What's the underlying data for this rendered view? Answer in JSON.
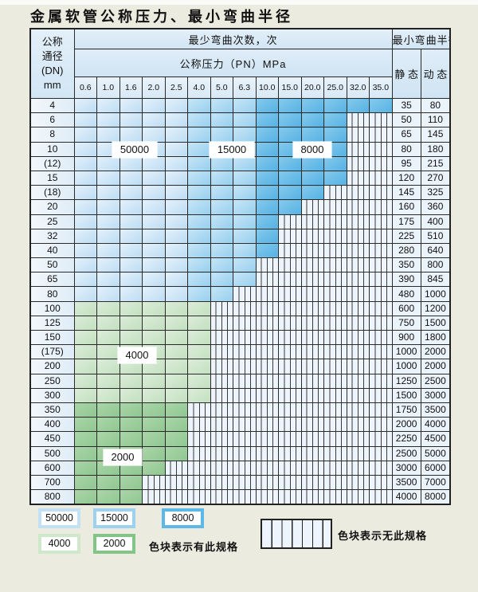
{
  "title": "金属软管公称压力、最小弯曲半径",
  "table": {
    "header": {
      "dn_label_lines": [
        "公称",
        "通径",
        "(DN)",
        "mm"
      ],
      "bend_cycles_label": "最少弯曲次数，次",
      "pressure_label": "公称压力（PN）MPa",
      "min_bend_radius_label": "最小弯曲半径",
      "static_label": "静 态",
      "dynamic_label": "动 态",
      "pressure_ticks": [
        "0.6",
        "1.0",
        "1.6",
        "2.0",
        "2.5",
        "4.0",
        "5.0",
        "6.3",
        "10.0",
        "15.0",
        "20.0",
        "25.0",
        "32.0",
        "35.0"
      ]
    },
    "cycle_zones": {
      "blue_bands_by_column": {
        "50000": [
          "0.6",
          "1.0",
          "1.6",
          "2.0",
          "2.5"
        ],
        "15000": [
          "4.0",
          "5.0",
          "6.3"
        ],
        "8000": [
          "10.0",
          "15.0",
          "20.0",
          "25.0",
          "32.0",
          "35.0"
        ]
      },
      "green_bands_by_row": {
        "4000": [
          "100",
          "125",
          "150",
          "(175)",
          "200",
          "250",
          "300"
        ],
        "2000": [
          "350",
          "400",
          "450",
          "500",
          "600",
          "700",
          "800"
        ]
      }
    },
    "rows": [
      {
        "dn": "4",
        "colored_cols": 14,
        "zone": "blue",
        "static": "35",
        "dynamic": "80"
      },
      {
        "dn": "6",
        "colored_cols": 12,
        "zone": "blue",
        "static": "50",
        "dynamic": "110"
      },
      {
        "dn": "8",
        "colored_cols": 12,
        "zone": "blue",
        "static": "65",
        "dynamic": "145"
      },
      {
        "dn": "10",
        "colored_cols": 12,
        "zone": "blue",
        "static": "80",
        "dynamic": "180"
      },
      {
        "dn": "(12)",
        "colored_cols": 12,
        "zone": "blue",
        "static": "95",
        "dynamic": "215"
      },
      {
        "dn": "15",
        "colored_cols": 12,
        "zone": "blue",
        "static": "120",
        "dynamic": "270"
      },
      {
        "dn": "(18)",
        "colored_cols": 11,
        "zone": "blue",
        "static": "145",
        "dynamic": "325"
      },
      {
        "dn": "20",
        "colored_cols": 10,
        "zone": "blue",
        "static": "160",
        "dynamic": "360"
      },
      {
        "dn": "25",
        "colored_cols": 9,
        "zone": "blue",
        "static": "175",
        "dynamic": "400"
      },
      {
        "dn": "32",
        "colored_cols": 9,
        "zone": "blue",
        "static": "225",
        "dynamic": "510"
      },
      {
        "dn": "40",
        "colored_cols": 9,
        "zone": "blue",
        "static": "280",
        "dynamic": "640"
      },
      {
        "dn": "50",
        "colored_cols": 8,
        "zone": "blue",
        "static": "350",
        "dynamic": "800"
      },
      {
        "dn": "65",
        "colored_cols": 8,
        "zone": "blue",
        "static": "390",
        "dynamic": "845"
      },
      {
        "dn": "80",
        "colored_cols": 7,
        "zone": "blue",
        "static": "480",
        "dynamic": "1000"
      },
      {
        "dn": "100",
        "colored_cols": 6,
        "zone": "green-4000",
        "static": "600",
        "dynamic": "1200"
      },
      {
        "dn": "125",
        "colored_cols": 6,
        "zone": "green-4000",
        "static": "750",
        "dynamic": "1500"
      },
      {
        "dn": "150",
        "colored_cols": 6,
        "zone": "green-4000",
        "static": "900",
        "dynamic": "1800"
      },
      {
        "dn": "(175)",
        "colored_cols": 6,
        "zone": "green-4000",
        "static": "1000",
        "dynamic": "2000"
      },
      {
        "dn": "200",
        "colored_cols": 6,
        "zone": "green-4000",
        "static": "1000",
        "dynamic": "2000"
      },
      {
        "dn": "250",
        "colored_cols": 6,
        "zone": "green-4000",
        "static": "1250",
        "dynamic": "2500"
      },
      {
        "dn": "300",
        "colored_cols": 6,
        "zone": "green-4000",
        "static": "1500",
        "dynamic": "3000"
      },
      {
        "dn": "350",
        "colored_cols": 5,
        "zone": "green-2000",
        "static": "1750",
        "dynamic": "3500"
      },
      {
        "dn": "400",
        "colored_cols": 5,
        "zone": "green-2000",
        "static": "2000",
        "dynamic": "4000"
      },
      {
        "dn": "450",
        "colored_cols": 5,
        "zone": "green-2000",
        "static": "2250",
        "dynamic": "4500"
      },
      {
        "dn": "500",
        "colored_cols": 5,
        "zone": "green-2000",
        "static": "2500",
        "dynamic": "5000"
      },
      {
        "dn": "600",
        "colored_cols": 4,
        "zone": "green-2000",
        "static": "3000",
        "dynamic": "6000"
      },
      {
        "dn": "700",
        "colored_cols": 3,
        "zone": "green-2000",
        "static": "3500",
        "dynamic": "7000"
      },
      {
        "dn": "800",
        "colored_cols": 3,
        "zone": "green-2000",
        "static": "4000",
        "dynamic": "8000"
      }
    ],
    "overlay_labels": [
      "50000",
      "15000",
      "8000",
      "4000",
      "2000"
    ]
  },
  "legend": {
    "items": [
      {
        "label": "50000",
        "color": "#c3e1f5"
      },
      {
        "label": "15000",
        "color": "#9cd2f0"
      },
      {
        "label": "8000",
        "color": "#5cb8e7"
      },
      {
        "label": "4000",
        "color": "#cfe7cb"
      },
      {
        "label": "2000",
        "color": "#82c687"
      }
    ],
    "has_spec_note": "色块表示有此规格",
    "no_spec_note": "色块表示无此规格"
  }
}
